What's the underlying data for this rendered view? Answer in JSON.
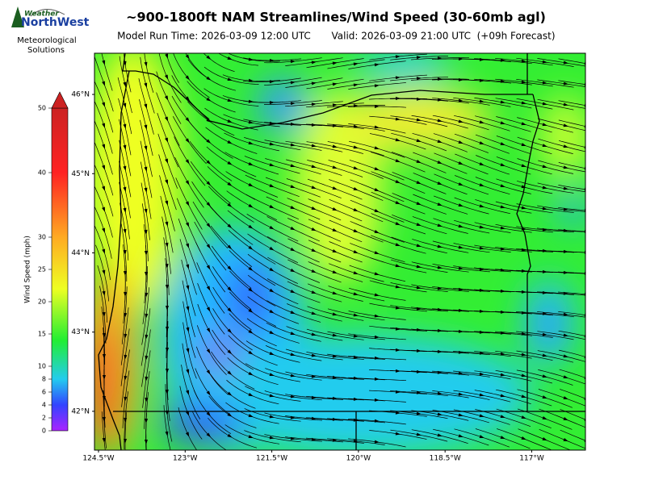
{
  "logo": {
    "line1": "Weather",
    "line2": "NorthWest",
    "caption1": "Meteorological",
    "caption2": "Solutions"
  },
  "title": "~900-1800ft NAM Streamlines/Wind Speed (30-60mb agl)",
  "subtitle_left": "Model Run Time: 2026-03-09 12:00 UTC",
  "subtitle_right": "Valid: 2026-03-09 21:00 UTC  (+09h Forecast)",
  "colorbar": {
    "label": "Wind Speed (mph)",
    "lim": [
      0,
      50
    ],
    "ticks": [
      0,
      2,
      4,
      6,
      8,
      10,
      15,
      20,
      25,
      30,
      40,
      50
    ]
  },
  "map": {
    "xlim": [
      -124.57,
      -116.07
    ],
    "ylim": [
      41.51,
      46.52
    ],
    "xticks": [
      {
        "value": -124.5,
        "label": "124.5°W"
      },
      {
        "value": -123,
        "label": "123°W"
      },
      {
        "value": -121.5,
        "label": "121.5°W"
      },
      {
        "value": -120,
        "label": "120°W"
      },
      {
        "value": -118.5,
        "label": "118.5°W"
      },
      {
        "value": -117,
        "label": "117°W"
      }
    ],
    "yticks": [
      {
        "value": 42,
        "label": "42°N"
      },
      {
        "value": 43,
        "label": "43°N"
      },
      {
        "value": 44,
        "label": "44°N"
      },
      {
        "value": 45,
        "label": "45°N"
      },
      {
        "value": 46,
        "label": "46°N"
      }
    ]
  }
}
